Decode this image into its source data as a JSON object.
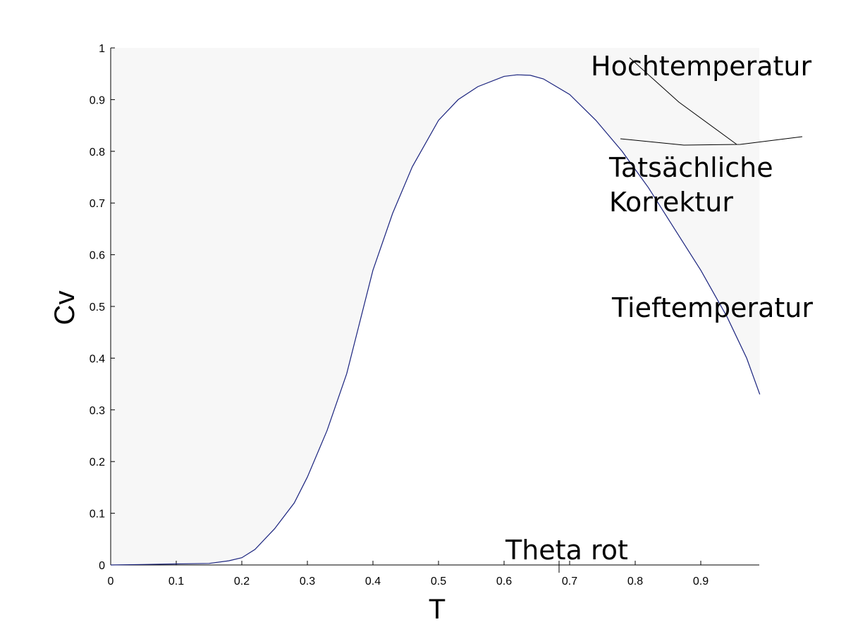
{
  "chart_data": {
    "type": "line",
    "title": "",
    "xlabel": "T",
    "ylabel": "Cv",
    "xlim": [
      0,
      0.99
    ],
    "ylim": [
      0,
      1
    ],
    "grid": false,
    "x_ticks": [
      "0",
      "0.1",
      "0.2",
      "0.3",
      "0.4",
      "0.5",
      "0.6",
      "0.7",
      "0.8",
      "0.9"
    ],
    "y_ticks": [
      "0",
      "0.1",
      "0.2",
      "0.3",
      "0.4",
      "0.5",
      "0.6",
      "0.7",
      "0.8",
      "0.9",
      "1"
    ],
    "series": [
      {
        "color": "#1a237e",
        "x": [
          0,
          0.05,
          0.1,
          0.15,
          0.18,
          0.2,
          0.22,
          0.25,
          0.28,
          0.3,
          0.33,
          0.36,
          0.4,
          0.43,
          0.46,
          0.5,
          0.53,
          0.56,
          0.6,
          0.62,
          0.64,
          0.66,
          0.7,
          0.74,
          0.78,
          0.82,
          0.86,
          0.9,
          0.94,
          0.97,
          0.99
        ],
        "y": [
          0,
          0.001,
          0.002,
          0.003,
          0.008,
          0.014,
          0.03,
          0.07,
          0.12,
          0.17,
          0.26,
          0.37,
          0.57,
          0.68,
          0.77,
          0.86,
          0.9,
          0.925,
          0.945,
          0.948,
          0.947,
          0.94,
          0.91,
          0.86,
          0.8,
          0.73,
          0.65,
          0.57,
          0.48,
          0.4,
          0.33
        ]
      }
    ],
    "annotations": [
      "Hochtemperatur",
      "Tatsächliche",
      "Korrektur",
      "Tieftemperatur",
      "Theta rot"
    ],
    "shade_color": "#f7f7f7"
  }
}
